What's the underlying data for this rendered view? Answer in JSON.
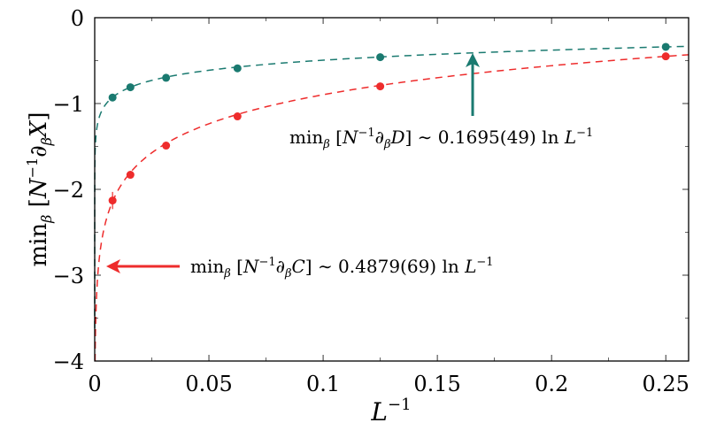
{
  "chart_data": {
    "type": "scatter",
    "xlabel": "L⁻¹",
    "ylabel": "min_β [N⁻¹∂_β X]",
    "xlim": [
      0,
      0.26
    ],
    "ylim": [
      -4,
      0
    ],
    "xticks": [
      "0",
      "0.05",
      "0.1",
      "0.15",
      "0.2",
      "0.25"
    ],
    "yticks": [
      "0",
      "−1",
      "−2",
      "−3",
      "−4"
    ],
    "grid": false,
    "series": [
      {
        "color": "#1a7a70",
        "x": [
          0.0078125,
          0.015625,
          0.03125,
          0.0625,
          0.125,
          0.25
        ],
        "y": [
          -0.93,
          -0.81,
          -0.7,
          -0.59,
          -0.46,
          -0.34
        ],
        "fit": {
          "form": "a + b ln x",
          "a": -0.105,
          "b": 0.1695
        },
        "annotation": "min_β [N⁻¹∂_β D] ∼ 0.1695(49) ln L⁻¹"
      },
      {
        "color": "#ee2c2c",
        "x": [
          0.0078125,
          0.015625,
          0.03125,
          0.0625,
          0.125,
          0.25
        ],
        "y": [
          -2.13,
          -1.83,
          -1.49,
          -1.15,
          -0.8,
          -0.45
        ],
        "yerr": [
          0.1,
          0.02,
          0.02,
          0.01,
          0.01,
          0.01
        ],
        "fit": {
          "form": "a + b ln x",
          "a": 0.226,
          "b": 0.4879
        },
        "annotation": "min_β [N⁻¹∂_β C] ∼ 0.4879(69) ln L⁻¹"
      }
    ]
  }
}
